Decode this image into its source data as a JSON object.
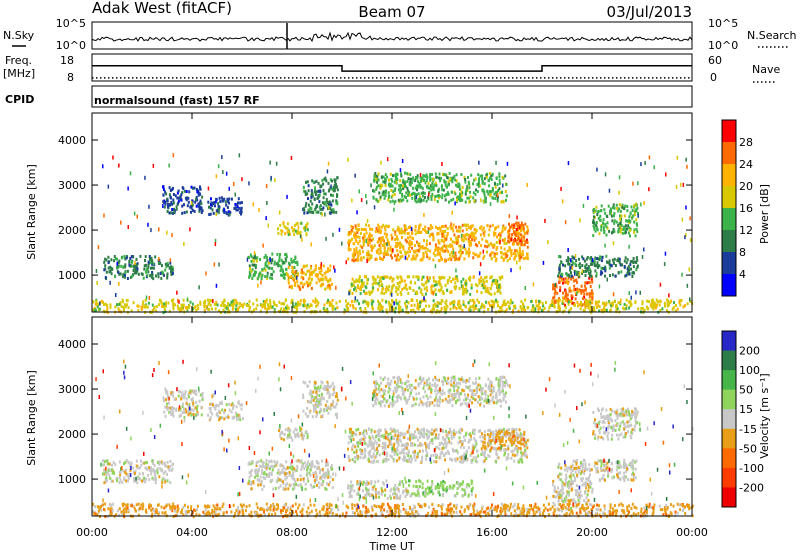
{
  "header": {
    "title": "Adak West (fitACF)",
    "beam": "Beam 07",
    "date": "03/Jul/2013"
  },
  "sky_panel": {
    "left_label": "N.Sky",
    "right_label": "N.Search",
    "ticks_left": [
      "10^5",
      "10^0"
    ],
    "ticks_right": [
      "10^5",
      "10^0"
    ]
  },
  "freq_panel": {
    "left_label_top": "Freq.",
    "left_label_unit": "[MHz]",
    "ticks_left": [
      "18",
      "8"
    ],
    "ticks_right": [
      "60",
      "0"
    ],
    "right_label": "Nave",
    "freq_steps": [
      {
        "from": 0,
        "to": 10.0,
        "value": 14
      },
      {
        "from": 10.0,
        "to": 18.0,
        "value": 11
      },
      {
        "from": 18.0,
        "to": 24.0,
        "value": 14
      }
    ],
    "nave_value": 7
  },
  "cpid": {
    "label": "CPID",
    "program": "normalsound (fast) 157 RF"
  },
  "chart_data": [
    {
      "type": "heatmap",
      "panel": "power",
      "ylabel": "Slant Range [km]",
      "ylim": [
        180,
        4600
      ],
      "yticks": [
        "1000",
        "2000",
        "3000",
        "4000"
      ],
      "colorbar_label": "Power [dB]",
      "colorbar_ticks": [
        "28",
        "24",
        "20",
        "16",
        "12",
        "8",
        "4"
      ],
      "colorbar_colors": [
        "#ff0000",
        "#ff6a00",
        "#ffb200",
        "#d8c800",
        "#3cb34a",
        "#2e7d48",
        "#1a3c9a",
        "#0000ff"
      ],
      "regions": [
        {
          "t0": 0.4,
          "t1": 3.2,
          "r0": 950,
          "r1": 1450,
          "level": 2
        },
        {
          "t0": 2.8,
          "t1": 4.4,
          "r0": 2400,
          "r1": 3000,
          "level": 1
        },
        {
          "t0": 4.6,
          "t1": 6.0,
          "r0": 2350,
          "r1": 2750,
          "level": 1
        },
        {
          "t0": 6.2,
          "t1": 8.2,
          "r0": 950,
          "r1": 1500,
          "level": 3
        },
        {
          "t0": 7.8,
          "t1": 9.6,
          "r0": 700,
          "r1": 1250,
          "level": 5
        },
        {
          "t0": 7.4,
          "t1": 8.6,
          "r0": 1900,
          "r1": 2200,
          "level": 4
        },
        {
          "t0": 8.4,
          "t1": 9.8,
          "r0": 2400,
          "r1": 3200,
          "level": 2
        },
        {
          "t0": 10.2,
          "t1": 17.4,
          "r0": 1350,
          "r1": 2150,
          "level": 5
        },
        {
          "t0": 10.2,
          "t1": 16.4,
          "r0": 600,
          "r1": 1000,
          "level": 4
        },
        {
          "t0": 11.2,
          "t1": 16.6,
          "r0": 2650,
          "r1": 3300,
          "level": 3
        },
        {
          "t0": 16.6,
          "t1": 17.4,
          "r0": 1700,
          "r1": 2200,
          "level": 6
        },
        {
          "t0": 18.4,
          "t1": 20.0,
          "r0": 350,
          "r1": 1000,
          "level": 6
        },
        {
          "t0": 18.6,
          "t1": 21.8,
          "r0": 1000,
          "r1": 1450,
          "level": 2
        },
        {
          "t0": 20.0,
          "t1": 21.8,
          "r0": 1900,
          "r1": 2600,
          "level": 3
        },
        {
          "t0": 0.0,
          "t1": 24.0,
          "r0": 200,
          "r1": 480,
          "level": 4
        }
      ]
    },
    {
      "type": "heatmap",
      "panel": "velocity",
      "ylabel": "Slant Range [km]",
      "ylim": [
        180,
        4600
      ],
      "yticks": [
        "1000",
        "2000",
        "3000",
        "4000"
      ],
      "colorbar_label": "Velocity [m s⁻¹]",
      "colorbar_ticks": [
        "200",
        "100",
        "50",
        "15",
        "-15",
        "-50",
        "-100",
        "-200"
      ],
      "colorbar_colors": [
        "#2828c8",
        "#2e7d48",
        "#46b54a",
        "#8fd45c",
        "#c8c8c8",
        "#e89e16",
        "#ff6a00",
        "#ff3c00",
        "#ee0000"
      ],
      "regions": [
        {
          "t0": 0.4,
          "t1": 3.2,
          "r0": 950,
          "r1": 1450,
          "level": 4
        },
        {
          "t0": 2.8,
          "t1": 4.4,
          "r0": 2400,
          "r1": 3000,
          "level": 4
        },
        {
          "t0": 4.6,
          "t1": 6.0,
          "r0": 2350,
          "r1": 2750,
          "level": 4
        },
        {
          "t0": 6.2,
          "t1": 9.6,
          "r0": 800,
          "r1": 1450,
          "level": 4
        },
        {
          "t0": 7.4,
          "t1": 8.6,
          "r0": 1900,
          "r1": 2200,
          "level": 4
        },
        {
          "t0": 8.4,
          "t1": 9.8,
          "r0": 2400,
          "r1": 3200,
          "level": 4
        },
        {
          "t0": 10.2,
          "t1": 17.4,
          "r0": 1400,
          "r1": 2150,
          "level": 4
        },
        {
          "t0": 15.6,
          "t1": 17.4,
          "r0": 1700,
          "r1": 2100,
          "level": 3
        },
        {
          "t0": 10.2,
          "t1": 12.6,
          "r0": 600,
          "r1": 1000,
          "level": 4
        },
        {
          "t0": 12.6,
          "t1": 15.2,
          "r0": 650,
          "r1": 1000,
          "level": 5
        },
        {
          "t0": 11.2,
          "t1": 16.6,
          "r0": 2650,
          "r1": 3300,
          "level": 4
        },
        {
          "t0": 18.4,
          "t1": 20.0,
          "r0": 350,
          "r1": 1000,
          "level": 4
        },
        {
          "t0": 18.6,
          "t1": 21.8,
          "r0": 1000,
          "r1": 1450,
          "level": 4
        },
        {
          "t0": 20.0,
          "t1": 21.8,
          "r0": 1900,
          "r1": 2600,
          "level": 4
        },
        {
          "t0": 0.0,
          "t1": 24.0,
          "r0": 200,
          "r1": 480,
          "level": 3
        }
      ]
    }
  ],
  "x_axis": {
    "ticks": [
      "00:00",
      "04:00",
      "08:00",
      "12:00",
      "16:00",
      "20:00",
      "00:00"
    ],
    "label": "Time UT"
  }
}
